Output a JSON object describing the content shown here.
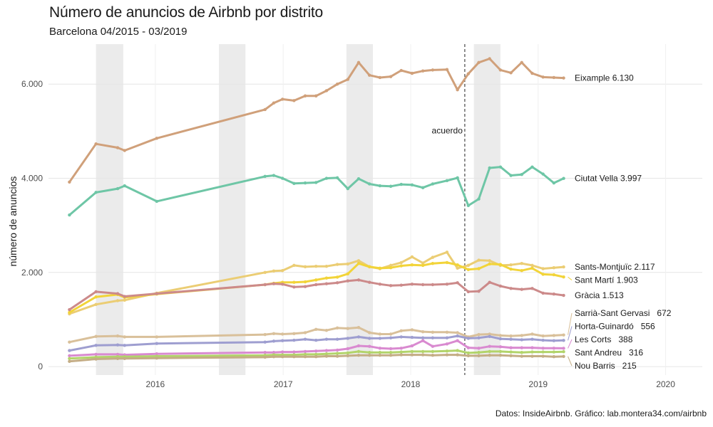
{
  "chart_data": {
    "type": "line",
    "title": "Número de anuncios de Airbnb por distrito",
    "subtitle": "Barcelona 04/2015 - 03/2019",
    "caption": "Datos: InsideAirbnb. Gráfico: lab.montera34.com/airbnb",
    "ylabel": "número de anuncios",
    "xlim": [
      "2015-03-01",
      "2020-04-15"
    ],
    "ylim": [
      -180,
      6850
    ],
    "x_ticks": [
      {
        "date": "2016-01-01",
        "label": "2016"
      },
      {
        "date": "2017-01-01",
        "label": "2017"
      },
      {
        "date": "2018-01-01",
        "label": "2018"
      },
      {
        "date": "2019-01-01",
        "label": "2019"
      },
      {
        "date": "2020-01-01",
        "label": "2020"
      }
    ],
    "y_ticks": [
      {
        "value": 0,
        "label": "0"
      },
      {
        "value": 2000,
        "label": "2.000"
      },
      {
        "value": 4000,
        "label": "4.000"
      },
      {
        "value": 6000,
        "label": "6.000"
      }
    ],
    "grid": true,
    "shaded_periods": [
      [
        "2015-07-15",
        "2015-10-01"
      ],
      [
        "2016-07-01",
        "2016-09-15"
      ],
      [
        "2017-07-01",
        "2017-09-15"
      ],
      [
        "2018-07-01",
        "2018-09-15"
      ]
    ],
    "reference_line": {
      "date": "2018-06-05",
      "label": "acuerdo",
      "label_value": 4950
    },
    "dates": [
      "2015-04-30",
      "2015-07-15",
      "2015-09-15",
      "2015-10-05",
      "2016-01-05",
      "2016-11-10",
      "2016-12-05",
      "2016-12-30",
      "2017-02-01",
      "2017-03-05",
      "2017-04-05",
      "2017-05-05",
      "2017-06-05",
      "2017-07-05",
      "2017-08-05",
      "2017-09-05",
      "2017-10-05",
      "2017-11-05",
      "2017-12-05",
      "2018-01-05",
      "2018-02-05",
      "2018-03-05",
      "2018-04-15",
      "2018-05-15",
      "2018-06-15",
      "2018-07-15",
      "2018-08-15",
      "2018-09-15",
      "2018-10-15",
      "2018-11-15",
      "2018-12-15",
      "2019-01-15",
      "2019-02-15",
      "2019-03-15"
    ],
    "series": [
      {
        "name": "Eixample",
        "end_label": "Eixample 6.130",
        "color": "#d0a07a",
        "values": [
          3920,
          4730,
          4650,
          4590,
          4850,
          5460,
          5600,
          5680,
          5650,
          5750,
          5750,
          5860,
          6000,
          6100,
          6460,
          6190,
          6140,
          6160,
          6290,
          6230,
          6280,
          6300,
          6310,
          5880,
          6220,
          6460,
          6540,
          6300,
          6240,
          6460,
          6230,
          6150,
          6140,
          6130
        ]
      },
      {
        "name": "Ciutat Vella",
        "end_label": "Ciutat Vella 3.997",
        "color": "#6ec6a6",
        "values": [
          3220,
          3700,
          3780,
          3840,
          3510,
          4040,
          4060,
          4000,
          3890,
          3900,
          3910,
          4000,
          4010,
          3780,
          3990,
          3880,
          3840,
          3830,
          3870,
          3860,
          3800,
          3880,
          3950,
          4010,
          3420,
          3560,
          4220,
          4240,
          4060,
          4080,
          4240,
          4090,
          3900,
          3997
        ]
      },
      {
        "name": "Sants-Montjuïc",
        "end_label": "Sants-Montjuïc 2.117",
        "color": "#ebcd74",
        "values": [
          1120,
          1320,
          1400,
          1410,
          1560,
          2000,
          2030,
          2040,
          2150,
          2120,
          2130,
          2130,
          2170,
          2180,
          2250,
          2120,
          2080,
          2150,
          2210,
          2330,
          2200,
          2320,
          2430,
          2090,
          2150,
          2260,
          2250,
          2150,
          2160,
          2190,
          2150,
          2080,
          2100,
          2117
        ]
      },
      {
        "name": "Sant Martí",
        "end_label": "Sant Martí 1.903",
        "color": "#f2d439",
        "values": [
          1150,
          1480,
          1530,
          1470,
          1540,
          1740,
          1770,
          1790,
          1790,
          1800,
          1840,
          1880,
          1900,
          1970,
          2190,
          2120,
          2090,
          2100,
          2140,
          2160,
          2150,
          2190,
          2210,
          2160,
          2060,
          2080,
          2180,
          2170,
          2070,
          2040,
          2090,
          1960,
          1950,
          1903
        ]
      },
      {
        "name": "Gràcia",
        "end_label": "Gràcia 1.513",
        "color": "#cc8a8a",
        "values": [
          1210,
          1590,
          1550,
          1490,
          1550,
          1740,
          1760,
          1750,
          1690,
          1700,
          1740,
          1760,
          1780,
          1820,
          1840,
          1790,
          1750,
          1720,
          1730,
          1750,
          1740,
          1740,
          1750,
          1780,
          1590,
          1600,
          1790,
          1710,
          1660,
          1640,
          1660,
          1560,
          1540,
          1513
        ]
      },
      {
        "name": "Sarrià-Sant Gervasi",
        "end_label": "Sarrià-Sant Gervasi   672",
        "color": "#d9c09a",
        "values": [
          520,
          640,
          650,
          630,
          630,
          680,
          700,
          690,
          700,
          720,
          790,
          770,
          820,
          810,
          830,
          720,
          690,
          690,
          760,
          780,
          740,
          730,
          730,
          720,
          630,
          680,
          690,
          660,
          650,
          660,
          690,
          650,
          660,
          672
        ]
      },
      {
        "name": "Horta-Guinardó",
        "end_label": "Horta-Guinardó   556",
        "color": "#9e9ed0",
        "values": [
          340,
          450,
          460,
          450,
          490,
          520,
          540,
          550,
          560,
          580,
          560,
          580,
          580,
          600,
          630,
          600,
          600,
          610,
          630,
          620,
          610,
          610,
          610,
          650,
          600,
          610,
          640,
          590,
          580,
          570,
          580,
          560,
          550,
          556
        ]
      },
      {
        "name": "Les Corts",
        "end_label": "Les Corts   388",
        "color": "#d98ad0",
        "values": [
          230,
          260,
          260,
          250,
          270,
          300,
          300,
          310,
          310,
          320,
          330,
          340,
          350,
          380,
          440,
          430,
          390,
          380,
          390,
          440,
          550,
          430,
          480,
          550,
          400,
          390,
          430,
          420,
          400,
          400,
          400,
          390,
          390,
          388
        ]
      },
      {
        "name": "Sant Andreu",
        "end_label": "Sant Andreu   316",
        "color": "#b2d46a",
        "values": [
          170,
          200,
          210,
          210,
          220,
          240,
          250,
          250,
          250,
          260,
          260,
          270,
          280,
          290,
          320,
          300,
          300,
          300,
          310,
          320,
          320,
          320,
          330,
          340,
          290,
          300,
          320,
          320,
          310,
          300,
          310,
          310,
          310,
          316
        ]
      },
      {
        "name": "Nou Barris",
        "end_label": "Nou Barris   215",
        "color": "#c4ad85",
        "values": [
          110,
          160,
          170,
          170,
          180,
          200,
          210,
          210,
          210,
          210,
          210,
          220,
          220,
          230,
          240,
          240,
          240,
          240,
          250,
          250,
          250,
          240,
          250,
          250,
          230,
          230,
          240,
          240,
          230,
          220,
          220,
          220,
          210,
          215
        ]
      }
    ]
  }
}
